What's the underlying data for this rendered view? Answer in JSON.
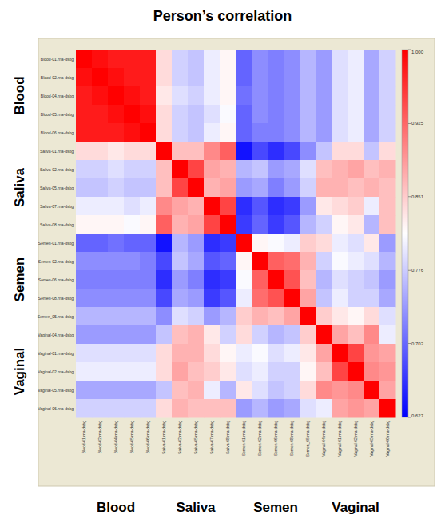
{
  "chart_data": {
    "type": "heatmap",
    "title": "Person’s correlation",
    "categories": [
      "Blood-01.rna-dsbg",
      "Blood-02.rna-dsbg",
      "Blood-04.rna-dsbg",
      "Blood-05.rna-dsbg",
      "Blood-06.rna-dsbg",
      "Saliva-01.rna-dsbg",
      "Saliva-02.rna-dsbg",
      "Saliva-05.rna-dsbg",
      "Saliva-07.rna-dsbg",
      "Saliva-08.rna-dsbg",
      "Semen-01.rna-dsbg",
      "Semen-02.rna-dsbg",
      "Semen-06.rna-dsbg",
      "Semen-08.rna-dsbg",
      "Semen_05.rna-dsbg",
      "Vaginal-04.rna-dsbg",
      "Vaginal-01.rna-dsbg",
      "Vaginal-02.rna-dsbg",
      "Vaginal-05.rna-dsbg",
      "Vaginal-06.rna-dsbg"
    ],
    "groups": [
      "Blood",
      "Saliva",
      "Semen",
      "Vaginal"
    ],
    "cells": [
      [
        1,
        0.99,
        0.98,
        0.98,
        0.98,
        0.84,
        0.78,
        0.77,
        0.8,
        0.82,
        0.7,
        0.73,
        0.72,
        0.73,
        0.76,
        0.74,
        0.79,
        0.8,
        0.75,
        0.78
      ],
      [
        0.99,
        1,
        0.99,
        0.98,
        0.98,
        0.84,
        0.78,
        0.77,
        0.8,
        0.82,
        0.7,
        0.73,
        0.72,
        0.73,
        0.76,
        0.74,
        0.79,
        0.8,
        0.75,
        0.78
      ],
      [
        0.98,
        0.99,
        1,
        0.99,
        0.98,
        0.83,
        0.79,
        0.78,
        0.8,
        0.82,
        0.71,
        0.73,
        0.72,
        0.73,
        0.76,
        0.74,
        0.79,
        0.8,
        0.75,
        0.78
      ],
      [
        0.98,
        0.98,
        0.99,
        1,
        0.99,
        0.84,
        0.78,
        0.77,
        0.79,
        0.81,
        0.7,
        0.73,
        0.72,
        0.73,
        0.76,
        0.74,
        0.79,
        0.8,
        0.75,
        0.78
      ],
      [
        0.98,
        0.98,
        0.98,
        0.99,
        1,
        0.84,
        0.78,
        0.77,
        0.8,
        0.82,
        0.7,
        0.72,
        0.72,
        0.73,
        0.76,
        0.74,
        0.79,
        0.8,
        0.75,
        0.78
      ],
      [
        0.84,
        0.84,
        0.83,
        0.84,
        0.84,
        1,
        0.86,
        0.86,
        0.9,
        0.93,
        0.64,
        0.68,
        0.66,
        0.68,
        0.73,
        0.77,
        0.84,
        0.84,
        0.77,
        0.84
      ],
      [
        0.78,
        0.78,
        0.79,
        0.78,
        0.78,
        0.86,
        1,
        0.95,
        0.88,
        0.87,
        0.76,
        0.77,
        0.74,
        0.75,
        0.79,
        0.86,
        0.87,
        0.88,
        0.86,
        0.87
      ],
      [
        0.77,
        0.77,
        0.78,
        0.77,
        0.77,
        0.86,
        0.95,
        1,
        0.87,
        0.88,
        0.74,
        0.75,
        0.72,
        0.74,
        0.78,
        0.87,
        0.87,
        0.86,
        0.87,
        0.86
      ],
      [
        0.8,
        0.8,
        0.8,
        0.79,
        0.8,
        0.9,
        0.88,
        0.87,
        1,
        0.95,
        0.66,
        0.69,
        0.66,
        0.67,
        0.74,
        0.83,
        0.84,
        0.85,
        0.8,
        0.86
      ],
      [
        0.82,
        0.82,
        0.82,
        0.81,
        0.82,
        0.93,
        0.87,
        0.88,
        0.95,
        1,
        0.67,
        0.7,
        0.67,
        0.69,
        0.76,
        0.78,
        0.82,
        0.83,
        0.76,
        0.86
      ],
      [
        0.7,
        0.7,
        0.71,
        0.7,
        0.7,
        0.64,
        0.76,
        0.74,
        0.66,
        0.67,
        1,
        0.82,
        0.81,
        0.8,
        0.85,
        0.84,
        0.8,
        0.79,
        0.83,
        0.74
      ],
      [
        0.73,
        0.73,
        0.73,
        0.73,
        0.72,
        0.68,
        0.77,
        0.75,
        0.69,
        0.7,
        0.82,
        1,
        0.93,
        0.92,
        0.87,
        0.78,
        0.81,
        0.8,
        0.79,
        0.76
      ],
      [
        0.72,
        0.72,
        0.72,
        0.72,
        0.72,
        0.66,
        0.74,
        0.72,
        0.66,
        0.67,
        0.81,
        0.93,
        1,
        0.94,
        0.86,
        0.76,
        0.79,
        0.78,
        0.77,
        0.74
      ],
      [
        0.73,
        0.73,
        0.73,
        0.73,
        0.73,
        0.68,
        0.75,
        0.74,
        0.67,
        0.69,
        0.8,
        0.92,
        0.94,
        1,
        0.88,
        0.77,
        0.8,
        0.78,
        0.78,
        0.75
      ],
      [
        0.76,
        0.76,
        0.76,
        0.76,
        0.76,
        0.73,
        0.79,
        0.78,
        0.74,
        0.76,
        0.85,
        0.87,
        0.86,
        0.88,
        1,
        0.85,
        0.83,
        0.82,
        0.84,
        0.79
      ],
      [
        0.74,
        0.74,
        0.74,
        0.74,
        0.74,
        0.77,
        0.86,
        0.87,
        0.83,
        0.78,
        0.84,
        0.78,
        0.76,
        0.77,
        0.85,
        1,
        0.88,
        0.86,
        0.9,
        0.8
      ],
      [
        0.79,
        0.79,
        0.79,
        0.79,
        0.79,
        0.84,
        0.87,
        0.87,
        0.84,
        0.82,
        0.8,
        0.81,
        0.79,
        0.8,
        0.83,
        0.88,
        1,
        0.95,
        0.89,
        0.88
      ],
      [
        0.8,
        0.8,
        0.8,
        0.8,
        0.8,
        0.84,
        0.88,
        0.86,
        0.85,
        0.83,
        0.79,
        0.8,
        0.78,
        0.78,
        0.82,
        0.86,
        0.95,
        1,
        0.9,
        0.89
      ],
      [
        0.75,
        0.75,
        0.75,
        0.75,
        0.75,
        0.77,
        0.86,
        0.87,
        0.8,
        0.76,
        0.83,
        0.79,
        0.77,
        0.78,
        0.84,
        0.9,
        0.89,
        0.9,
        1,
        0.88
      ],
      [
        0.78,
        0.78,
        0.78,
        0.78,
        0.78,
        0.84,
        0.87,
        0.86,
        0.86,
        0.86,
        0.74,
        0.76,
        0.74,
        0.75,
        0.79,
        0.8,
        0.88,
        0.89,
        0.88,
        1
      ]
    ],
    "color_range": [
      0.627,
      1.0
    ],
    "color_ticks": [
      {
        "value": 1.0,
        "label": "1.000"
      },
      0.925,
      0.851,
      0.776,
      0.702,
      0.627
    ]
  }
}
